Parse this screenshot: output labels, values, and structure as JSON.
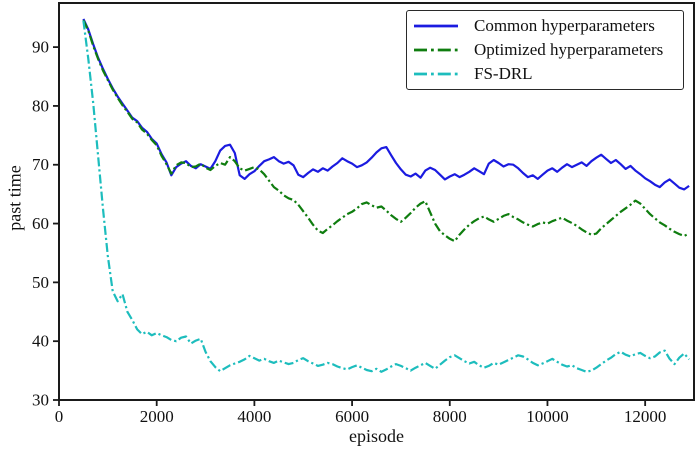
{
  "figure": {
    "background": "#ffffff",
    "axis_color": "#1a1a1a",
    "text_color": "#111111"
  },
  "chart_data": {
    "type": "line",
    "title": "",
    "xlabel": "episode",
    "ylabel": "past time",
    "xlim": [
      0,
      13000
    ],
    "ylim": [
      30,
      97.5
    ],
    "x_ticks": [
      0,
      2000,
      4000,
      6000,
      8000,
      10000,
      12000
    ],
    "y_ticks": [
      30,
      40,
      50,
      60,
      70,
      80,
      90
    ],
    "grid": false,
    "legend_position": "upper right",
    "x_start": 500,
    "x_step": 100,
    "series": [
      {
        "name": "Common hyperparameters",
        "color": "#1b1be0",
        "style": "solid",
        "dash": "",
        "values": [
          94.8,
          93.0,
          90.5,
          88.2,
          86.3,
          84.6,
          83.0,
          81.6,
          80.4,
          79.2,
          78.0,
          77.4,
          76.3,
          75.6,
          74.4,
          73.6,
          71.8,
          70.4,
          68.2,
          69.6,
          70.2,
          70.6,
          69.8,
          69.4,
          70.1,
          69.7,
          69.3,
          70.6,
          72.4,
          73.2,
          73.4,
          72.0,
          68.2,
          67.6,
          68.4,
          68.9,
          69.8,
          70.6,
          70.9,
          71.3,
          70.6,
          70.2,
          70.5,
          69.9,
          68.3,
          67.9,
          68.6,
          69.2,
          68.8,
          69.4,
          69.0,
          69.7,
          70.3,
          71.1,
          70.6,
          70.2,
          69.6,
          69.9,
          70.4,
          71.2,
          72.1,
          72.8,
          73.0,
          71.6,
          70.3,
          69.2,
          68.3,
          68.0,
          68.5,
          67.8,
          69.0,
          69.5,
          69.1,
          68.3,
          67.5,
          68.0,
          68.4,
          67.9,
          68.3,
          68.8,
          69.4,
          68.9,
          68.4,
          70.2,
          70.8,
          70.3,
          69.7,
          70.1,
          70.0,
          69.4,
          68.6,
          67.9,
          68.2,
          67.6,
          68.3,
          69.0,
          69.4,
          68.8,
          69.5,
          70.1,
          69.6,
          70.0,
          70.4,
          69.8,
          70.6,
          71.2,
          71.7,
          71.0,
          70.3,
          70.8,
          70.1,
          69.3,
          69.8,
          69.0,
          68.4,
          67.7,
          67.2,
          66.6,
          66.2,
          67.0,
          67.5,
          66.8,
          66.1,
          65.8,
          66.4
        ]
      },
      {
        "name": "Optimized hyperparameters",
        "color": "#0f7d0f",
        "style": "dashdot",
        "dash": "9 3 2.2 3",
        "values": [
          94.6,
          92.8,
          90.2,
          88.0,
          86.0,
          84.4,
          82.8,
          81.4,
          80.1,
          79.0,
          77.8,
          77.2,
          76.0,
          75.3,
          74.2,
          73.3,
          71.5,
          70.1,
          68.5,
          69.9,
          70.4,
          70.3,
          69.6,
          69.7,
          70.2,
          69.5,
          69.1,
          69.8,
          70.3,
          70.0,
          71.3,
          70.6,
          69.4,
          69.0,
          69.3,
          69.6,
          69.2,
          68.4,
          67.3,
          66.2,
          65.6,
          64.8,
          64.3,
          64.0,
          63.2,
          62.1,
          61.0,
          59.8,
          58.8,
          58.4,
          59.1,
          59.7,
          60.4,
          61.0,
          61.6,
          62.0,
          62.6,
          63.3,
          63.6,
          63.1,
          62.7,
          62.9,
          62.2,
          61.4,
          60.8,
          60.3,
          61.0,
          61.8,
          62.7,
          63.4,
          63.8,
          61.9,
          60.0,
          58.7,
          58.0,
          57.4,
          57.0,
          58.1,
          59.0,
          59.8,
          60.4,
          60.9,
          61.2,
          60.7,
          60.3,
          60.8,
          61.3,
          61.6,
          61.1,
          60.7,
          60.2,
          59.8,
          59.5,
          59.9,
          60.2,
          60.0,
          60.4,
          60.7,
          61.0,
          60.5,
          60.1,
          59.6,
          59.0,
          58.5,
          58.1,
          58.3,
          59.2,
          59.9,
          60.6,
          61.3,
          62.0,
          62.6,
          63.2,
          63.9,
          63.4,
          62.5,
          61.6,
          60.9,
          60.2,
          59.7,
          59.1,
          58.6,
          58.2,
          57.9,
          58.3
        ]
      },
      {
        "name": "FS-DRL",
        "color": "#1dbdbd",
        "style": "dashdot",
        "dash": "9 3 2.2 3",
        "values": [
          94.5,
          88.0,
          80.5,
          71.5,
          62.5,
          54.5,
          48.5,
          46.8,
          48.0,
          45.0,
          43.6,
          42.0,
          41.2,
          41.6,
          41.0,
          41.4,
          41.0,
          40.7,
          40.2,
          40.0,
          40.6,
          40.8,
          39.6,
          40.1,
          40.4,
          38.2,
          36.6,
          35.6,
          34.9,
          35.4,
          35.9,
          36.2,
          36.5,
          36.9,
          37.5,
          37.1,
          36.7,
          37.0,
          36.6,
          36.3,
          36.7,
          36.4,
          36.1,
          36.3,
          36.8,
          37.1,
          36.6,
          36.2,
          35.8,
          36.0,
          36.3,
          36.1,
          35.7,
          35.4,
          35.2,
          35.6,
          35.9,
          35.5,
          35.1,
          34.9,
          35.3,
          34.8,
          35.2,
          35.7,
          36.1,
          35.8,
          35.4,
          35.0,
          35.5,
          35.9,
          36.3,
          35.8,
          35.3,
          36.0,
          36.7,
          37.3,
          37.6,
          37.1,
          36.6,
          36.2,
          36.5,
          35.9,
          35.5,
          35.8,
          36.3,
          36.0,
          36.4,
          36.8,
          37.2,
          37.6,
          37.4,
          36.9,
          36.3,
          35.9,
          36.2,
          36.6,
          37.0,
          36.5,
          36.0,
          35.7,
          35.9,
          35.4,
          35.1,
          34.8,
          35.0,
          35.5,
          36.1,
          36.7,
          37.2,
          37.8,
          38.2,
          37.7,
          37.4,
          37.8,
          38.0,
          37.5,
          37.1,
          37.4,
          38.1,
          38.4,
          37.0,
          36.1,
          37.2,
          37.9,
          36.9
        ]
      }
    ]
  }
}
